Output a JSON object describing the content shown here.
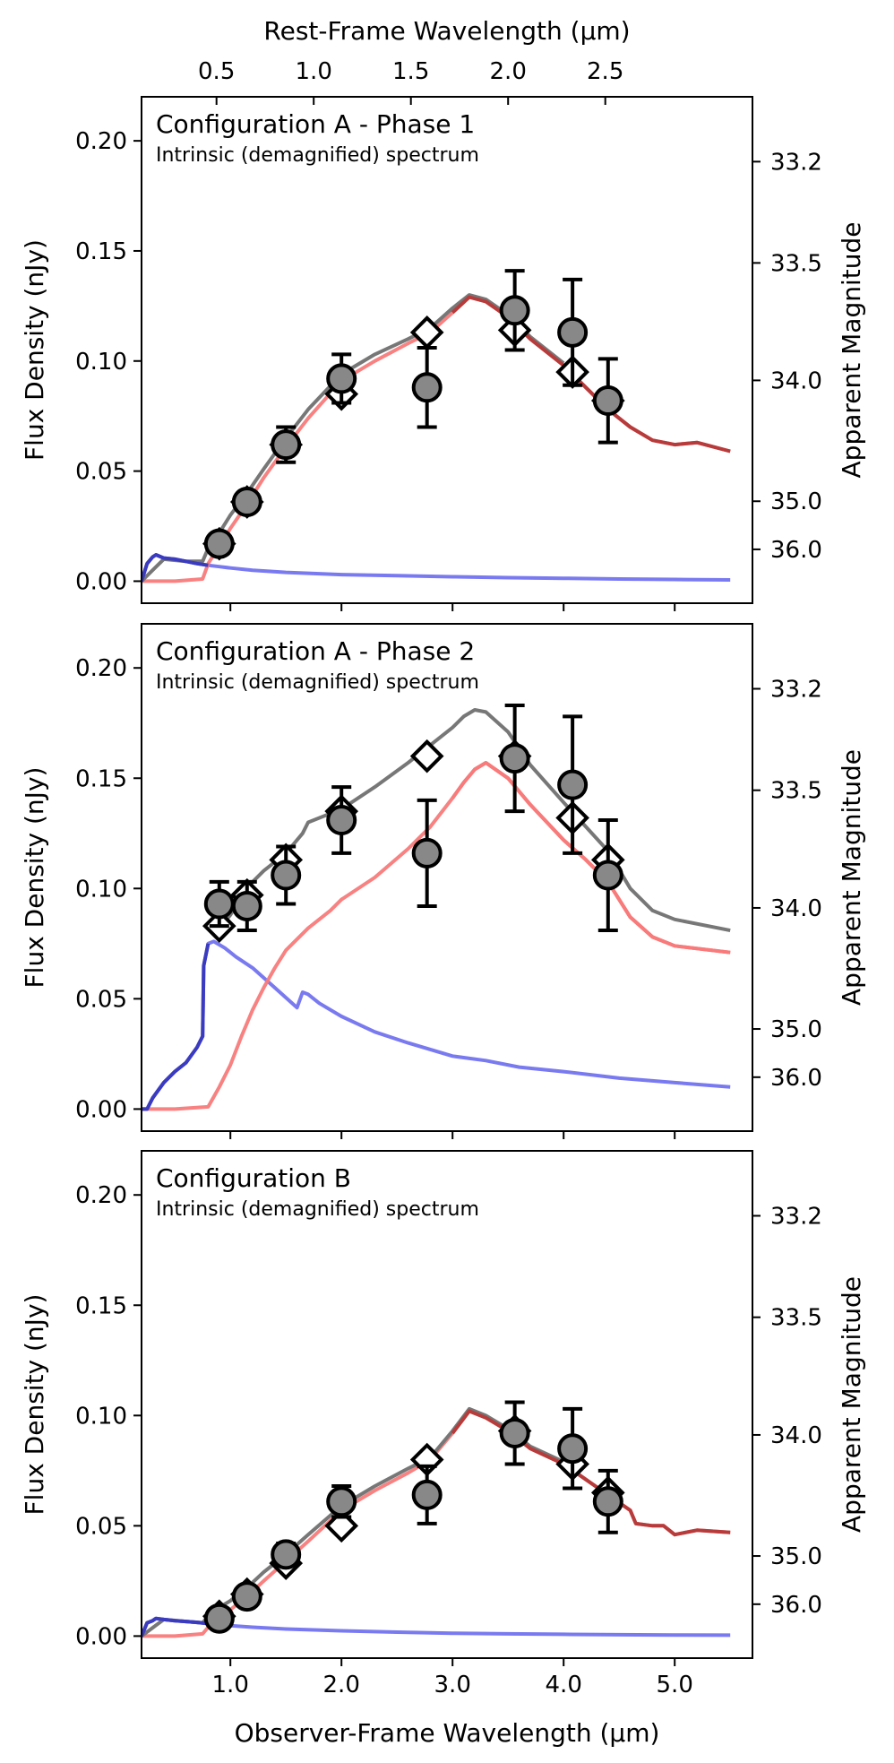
{
  "chart_data": {
    "type": "line",
    "figure": {
      "top_axis_label": "Rest-Frame Wavelength (µm)",
      "top_ticks": [
        "0.5",
        "1.0",
        "1.5",
        "2.0",
        "2.5"
      ],
      "top_tick_values": [
        0.5,
        1.0,
        1.5,
        2.0,
        2.5
      ],
      "top_redshift_factor": 1.75,
      "xlabel": "Observer-Frame Wavelength (µm)",
      "xlim": [
        0.2,
        5.7
      ],
      "x_ticks": [
        "1.0",
        "2.0",
        "3.0",
        "4.0",
        "5.0"
      ],
      "x_tick_values": [
        1.0,
        2.0,
        3.0,
        4.0,
        5.0
      ],
      "ylabel": "Flux Density (nJy)",
      "ylim": [
        -0.01,
        0.22
      ],
      "y_ticks": [
        "0.00",
        "0.05",
        "0.10",
        "0.15",
        "0.20"
      ],
      "y_tick_values": [
        0.0,
        0.05,
        0.1,
        0.15,
        0.2
      ],
      "right_axis_label": "Apparent Magnitude",
      "right_ticks": [
        "33.2",
        "33.5",
        "34.0",
        "35.0",
        "36.0"
      ],
      "right_tick_values": [
        33.2,
        33.5,
        34.0,
        35.0,
        36.0
      ],
      "ab_zeropoint": 31.4,
      "colors": {
        "total": "#777777",
        "red": "#f87a7a",
        "red_dark": "#b83b3b",
        "blue": "#7a7af0",
        "blue_dark": "#3b3bc0",
        "point_fill": "#888888",
        "marker_edge": "#000000"
      },
      "legend": "none",
      "grid": false
    },
    "panels": [
      {
        "title": "Configuration A - Phase 1",
        "subtitle": "Intrinsic (demagnified) spectrum",
        "series": [
          {
            "role": "blue",
            "x": [
              0.2,
              0.25,
              0.3,
              0.33,
              0.4,
              0.5,
              0.6,
              0.7,
              0.8,
              0.9,
              1.0,
              1.2,
              1.5,
              2.0,
              2.5,
              3.0,
              3.5,
              4.0,
              4.5,
              5.0,
              5.5
            ],
            "y": [
              0.0,
              0.008,
              0.011,
              0.012,
              0.0105,
              0.01,
              0.009,
              0.008,
              0.0072,
              0.0066,
              0.006,
              0.005,
              0.004,
              0.003,
              0.0025,
              0.002,
              0.0016,
              0.0013,
              0.001,
              0.0008,
              0.0006
            ]
          },
          {
            "role": "red",
            "x": [
              0.2,
              0.5,
              0.75,
              0.8,
              0.9,
              1.0,
              1.15,
              1.3,
              1.5,
              1.7,
              2.0,
              2.3,
              2.6,
              2.8,
              3.0,
              3.15,
              3.3,
              3.5,
              3.7,
              4.0,
              4.2,
              4.4,
              4.6,
              4.8,
              5.0,
              5.2,
              5.5
            ],
            "y": [
              0.0,
              0.0,
              0.001,
              0.008,
              0.016,
              0.024,
              0.035,
              0.047,
              0.061,
              0.074,
              0.091,
              0.1,
              0.108,
              0.113,
              0.122,
              0.129,
              0.127,
              0.12,
              0.11,
              0.098,
              0.088,
              0.078,
              0.07,
              0.064,
              0.062,
              0.063,
              0.059
            ]
          },
          {
            "role": "total",
            "x": [
              0.2,
              0.4,
              0.6,
              0.75,
              0.8,
              0.9,
              1.0,
              1.15,
              1.3,
              1.5,
              1.7,
              2.0,
              2.3,
              2.6,
              2.8,
              3.0,
              3.15,
              3.3,
              3.5,
              3.7,
              4.0
            ],
            "y": [
              0.0,
              0.01,
              0.009,
              0.009,
              0.015,
              0.022,
              0.03,
              0.04,
              0.051,
              0.065,
              0.078,
              0.094,
              0.103,
              0.11,
              0.115,
              0.124,
              0.13,
              0.128,
              0.121,
              0.111,
              0.099
            ]
          }
        ],
        "model_points": {
          "x": [
            0.9,
            1.15,
            1.5,
            2.0,
            2.77,
            3.56,
            4.08,
            4.4
          ],
          "y": [
            0.017,
            0.036,
            0.062,
            0.085,
            0.113,
            0.114,
            0.095,
            0.082
          ]
        },
        "observed": {
          "x": [
            0.9,
            1.15,
            1.5,
            2.0,
            2.77,
            3.56,
            4.08,
            4.4
          ],
          "y": [
            0.017,
            0.036,
            0.062,
            0.092,
            0.088,
            0.123,
            0.113,
            0.082
          ],
          "yerr": [
            0.004,
            0.004,
            0.008,
            0.011,
            0.018,
            0.018,
            0.024,
            0.019
          ]
        }
      },
      {
        "title": "Configuration A - Phase 2",
        "subtitle": "Intrinsic (demagnified) spectrum",
        "series": [
          {
            "role": "blue",
            "x": [
              0.2,
              0.25,
              0.3,
              0.4,
              0.5,
              0.6,
              0.7,
              0.75,
              0.76,
              0.8,
              0.85,
              0.95,
              1.05,
              1.2,
              1.4,
              1.6,
              1.65,
              1.7,
              1.8,
              2.0,
              2.3,
              2.6,
              2.8,
              3.0,
              3.3,
              3.6,
              4.0,
              4.5,
              5.0,
              5.5
            ],
            "y": [
              0.0,
              0.0,
              0.005,
              0.012,
              0.017,
              0.021,
              0.028,
              0.033,
              0.065,
              0.075,
              0.076,
              0.073,
              0.069,
              0.064,
              0.055,
              0.046,
              0.053,
              0.052,
              0.048,
              0.042,
              0.035,
              0.03,
              0.027,
              0.024,
              0.022,
              0.019,
              0.017,
              0.014,
              0.012,
              0.01
            ]
          },
          {
            "role": "red",
            "x": [
              0.2,
              0.5,
              0.8,
              0.9,
              1.0,
              1.1,
              1.2,
              1.3,
              1.4,
              1.5,
              1.7,
              1.9,
              2.0,
              2.3,
              2.6,
              2.8,
              3.0,
              3.1,
              3.2,
              3.3,
              3.5,
              3.7,
              4.0,
              4.2,
              4.4,
              4.6,
              4.8,
              5.0,
              5.5
            ],
            "y": [
              0.0,
              0.0,
              0.001,
              0.01,
              0.02,
              0.033,
              0.045,
              0.055,
              0.064,
              0.072,
              0.082,
              0.09,
              0.095,
              0.105,
              0.118,
              0.128,
              0.141,
              0.148,
              0.154,
              0.157,
              0.15,
              0.138,
              0.122,
              0.113,
              0.103,
              0.087,
              0.078,
              0.074,
              0.071
            ]
          },
          {
            "role": "total",
            "x": [
              0.9,
              1.0,
              1.1,
              1.2,
              1.3,
              1.5,
              1.65,
              1.7,
              2.0,
              2.3,
              2.6,
              2.8,
              3.0,
              3.1,
              3.2,
              3.3,
              3.5,
              3.7,
              4.0,
              4.2,
              4.4,
              4.6,
              4.8,
              5.0,
              5.5
            ],
            "y": [
              0.082,
              0.088,
              0.096,
              0.103,
              0.108,
              0.116,
              0.125,
              0.13,
              0.136,
              0.146,
              0.157,
              0.165,
              0.173,
              0.178,
              0.181,
              0.18,
              0.171,
              0.156,
              0.139,
              0.128,
              0.117,
              0.1,
              0.09,
              0.086,
              0.081
            ]
          }
        ],
        "model_points": {
          "x": [
            0.9,
            1.15,
            1.5,
            2.0,
            2.77,
            3.56,
            4.08,
            4.4
          ],
          "y": [
            0.083,
            0.097,
            0.113,
            0.135,
            0.16,
            0.16,
            0.132,
            0.113
          ]
        },
        "observed": {
          "x": [
            0.9,
            1.15,
            1.5,
            2.0,
            2.77,
            3.56,
            4.08,
            4.4
          ],
          "y": [
            0.093,
            0.092,
            0.106,
            0.131,
            0.116,
            0.159,
            0.147,
            0.106
          ],
          "yerr": [
            0.01,
            0.011,
            0.013,
            0.015,
            0.024,
            0.024,
            0.031,
            0.025
          ]
        }
      },
      {
        "title": "Configuration B",
        "subtitle": "Intrinsic (demagnified) spectrum",
        "series": [
          {
            "role": "blue",
            "x": [
              0.2,
              0.25,
              0.3,
              0.33,
              0.4,
              0.5,
              0.6,
              0.7,
              0.8,
              0.9,
              1.0,
              1.2,
              1.5,
              2.0,
              2.5,
              3.0,
              3.5,
              4.0,
              4.5,
              5.0,
              5.5
            ],
            "y": [
              0.0,
              0.006,
              0.007,
              0.008,
              0.0075,
              0.007,
              0.0066,
              0.0062,
              0.0057,
              0.0052,
              0.0047,
              0.004,
              0.0032,
              0.0024,
              0.0018,
              0.0013,
              0.001,
              0.0008,
              0.0006,
              0.0005,
              0.0004
            ]
          },
          {
            "role": "red",
            "x": [
              0.2,
              0.5,
              0.75,
              0.8,
              0.9,
              1.0,
              1.15,
              1.3,
              1.5,
              1.7,
              2.0,
              2.3,
              2.6,
              2.8,
              3.0,
              3.15,
              3.3,
              3.5,
              3.7,
              4.0,
              4.2,
              4.4,
              4.6,
              4.65,
              4.8,
              4.9,
              5.0,
              5.2,
              5.5
            ],
            "y": [
              0.0,
              0.0,
              0.001,
              0.004,
              0.008,
              0.012,
              0.018,
              0.025,
              0.034,
              0.043,
              0.057,
              0.066,
              0.074,
              0.08,
              0.092,
              0.102,
              0.099,
              0.093,
              0.085,
              0.078,
              0.071,
              0.064,
              0.057,
              0.051,
              0.05,
              0.05,
              0.046,
              0.048,
              0.047
            ]
          },
          {
            "role": "total",
            "x": [
              0.2,
              0.4,
              0.6,
              0.75,
              0.8,
              0.9,
              1.0,
              1.15,
              1.3,
              1.5,
              1.7,
              2.0,
              2.3,
              2.6,
              2.8,
              3.0,
              3.15,
              3.3,
              3.5,
              3.7,
              4.0
            ],
            "y": [
              0.0,
              0.0075,
              0.0066,
              0.006,
              0.009,
              0.013,
              0.016,
              0.022,
              0.029,
              0.037,
              0.046,
              0.059,
              0.068,
              0.076,
              0.081,
              0.093,
              0.103,
              0.1,
              0.094,
              0.086,
              0.079
            ]
          }
        ],
        "model_points": {
          "x": [
            0.9,
            1.15,
            1.5,
            2.0,
            2.77,
            3.56,
            4.08,
            4.4
          ],
          "y": [
            0.009,
            0.019,
            0.033,
            0.05,
            0.08,
            0.093,
            0.078,
            0.065
          ]
        },
        "observed": {
          "x": [
            0.9,
            1.15,
            1.5,
            2.0,
            2.77,
            3.56,
            4.08,
            4.4
          ],
          "y": [
            0.008,
            0.018,
            0.037,
            0.061,
            0.064,
            0.092,
            0.085,
            0.061
          ],
          "yerr": [
            0.003,
            0.003,
            0.005,
            0.007,
            0.013,
            0.014,
            0.018,
            0.014
          ]
        }
      }
    ]
  }
}
